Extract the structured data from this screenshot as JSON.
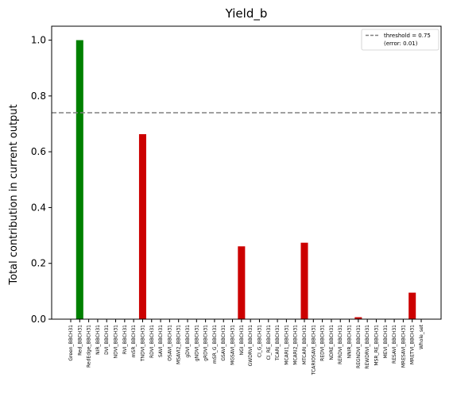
{
  "chart_data": {
    "type": "bar",
    "title": "Yield_b",
    "ylabel": "Total contribution in current output",
    "xlabel": "",
    "ylim": [
      0,
      1.05
    ],
    "yticks": [
      0.0,
      0.2,
      0.4,
      0.6,
      0.8,
      1.0
    ],
    "ytick_labels": [
      "0.0",
      "0.2",
      "0.4",
      "0.6",
      "0.8",
      "1.0"
    ],
    "categories": [
      "Green_BBCH31",
      "Red_BBCH31",
      "RedEdge_BBCH31",
      "NIR_BBCH31",
      "DVI_BBCH31",
      "NDVI_BBCH31",
      "RVI_BBCH31",
      "mSR_BBCH31",
      "TNDVI_BBCH31",
      "RDVI_BBCH31",
      "SAVI_BBCH31",
      "OSAVI_BBCH31",
      "MSAVI2_BBCH31",
      "gDVI_BBCH31",
      "gNDVI_BBCH31",
      "gRDVI_BBCH31",
      "mSR_G_BBCH31",
      "GSAVI_BBCH31",
      "MGSAVI_BBCH31",
      "NGI_BBCH31",
      "GWDRVI_BBCH31",
      "CI_G_BBCH31",
      "CI_RE_BBCH31",
      "TCARI_BBCH31",
      "MCARI1_BBCH31",
      "MCARI2_BBCH31",
      "MTCARI_BBCH31",
      "TCARIOSAVI_BBCH31",
      "REDVI_BBCH31",
      "NDRE_BBCH31",
      "RERDVI_BBCH31",
      "NNIR_BBCH31",
      "REGNDVI_BBCH31",
      "REWDRVI_BBCH31",
      "MSR_RE_BBCH31",
      "MEVI_BBCH31",
      "RESAVI_BBCH31",
      "MRESAVI_BBCH31",
      "MRETVI_BBCH31",
      "Whole_set"
    ],
    "values": [
      0,
      1.0,
      0,
      0,
      0,
      0,
      0,
      0,
      0.663,
      0,
      0,
      0,
      0,
      0,
      0,
      0,
      0,
      0,
      0,
      0.261,
      0,
      0,
      0,
      0,
      0,
      0,
      0.274,
      0,
      0,
      0,
      0,
      0,
      0.007,
      0,
      0,
      0,
      0,
      0,
      0.095,
      0
    ],
    "bar_colors": {
      "positive": "#008000",
      "negative": "#cc0000"
    },
    "bar_signs": [
      "n",
      "p",
      "n",
      "n",
      "n",
      "n",
      "n",
      "n",
      "n",
      "n",
      "n",
      "n",
      "n",
      "n",
      "n",
      "n",
      "n",
      "n",
      "n",
      "n",
      "n",
      "n",
      "n",
      "n",
      "n",
      "n",
      "n",
      "n",
      "n",
      "n",
      "n",
      "n",
      "n",
      "n",
      "n",
      "n",
      "n",
      "n",
      "n",
      "n"
    ],
    "threshold": {
      "value": 0.74,
      "color": "#808080",
      "style": "dashed"
    },
    "legend": {
      "placement": "top-right",
      "line1": "threshold = 0.75",
      "line2": "(error: 0.01)"
    }
  }
}
